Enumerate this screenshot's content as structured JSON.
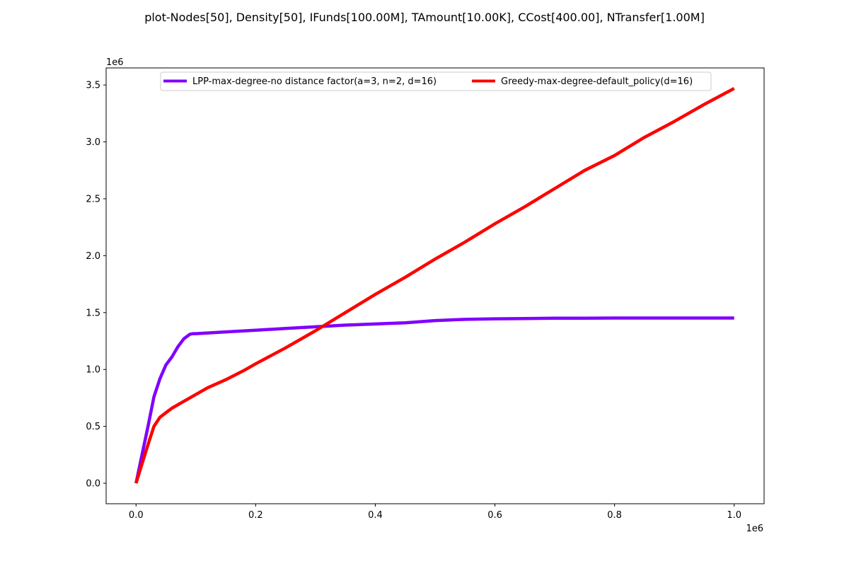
{
  "chart_data": {
    "type": "line",
    "title": "plot-Nodes[50], Density[50], IFunds[100.00M], TAmount[10.00K], CCost[400.00], NTransfer[1.00M]",
    "xlabel": "",
    "ylabel": "",
    "x_offset_label": "1e6",
    "y_offset_label": "1e6",
    "xlim": [
      -50000,
      1050000
    ],
    "ylim": [
      -180000,
      3650000
    ],
    "x_ticks": [
      0,
      200000,
      400000,
      600000,
      800000,
      1000000
    ],
    "x_tick_labels": [
      "0.0",
      "0.2",
      "0.4",
      "0.6",
      "0.8",
      "1.0"
    ],
    "y_ticks": [
      0,
      500000,
      1000000,
      1500000,
      2000000,
      2500000,
      3000000,
      3500000
    ],
    "y_tick_labels": [
      "0.0",
      "0.5",
      "1.0",
      "1.5",
      "2.0",
      "2.5",
      "3.0",
      "3.5"
    ],
    "grid": false,
    "legend_position": "top-center",
    "legend_columns": 2,
    "series": [
      {
        "name": "LPP-max-degree-no distance factor(a=3, n=2, d=16)",
        "color": "#8000ff",
        "x": [
          0,
          10000,
          20000,
          30000,
          40000,
          50000,
          60000,
          70000,
          80000,
          90000,
          95000,
          100000,
          150000,
          200000,
          250000,
          300000,
          350000,
          400000,
          450000,
          500000,
          550000,
          600000,
          650000,
          700000,
          750000,
          800000,
          900000,
          1000000
        ],
        "y": [
          0,
          250000,
          500000,
          760000,
          920000,
          1040000,
          1110000,
          1200000,
          1270000,
          1310000,
          1315000,
          1315000,
          1330000,
          1345000,
          1360000,
          1375000,
          1390000,
          1400000,
          1410000,
          1430000,
          1440000,
          1445000,
          1448000,
          1450000,
          1451000,
          1452000,
          1452000,
          1452000
        ]
      },
      {
        "name": "Greedy-max-degree-default_policy(d=16)",
        "color": "#ff0000",
        "x": [
          0,
          10000,
          20000,
          30000,
          40000,
          50000,
          60000,
          80000,
          100000,
          120000,
          150000,
          180000,
          200000,
          250000,
          300000,
          350000,
          400000,
          450000,
          500000,
          550000,
          600000,
          650000,
          700000,
          750000,
          800000,
          850000,
          900000,
          950000,
          1000000
        ],
        "y": [
          0,
          170000,
          340000,
          500000,
          580000,
          620000,
          660000,
          720000,
          780000,
          840000,
          910000,
          990000,
          1050000,
          1190000,
          1340000,
          1500000,
          1660000,
          1810000,
          1970000,
          2120000,
          2280000,
          2430000,
          2590000,
          2750000,
          2880000,
          3040000,
          3180000,
          3330000,
          3470000
        ]
      }
    ]
  }
}
